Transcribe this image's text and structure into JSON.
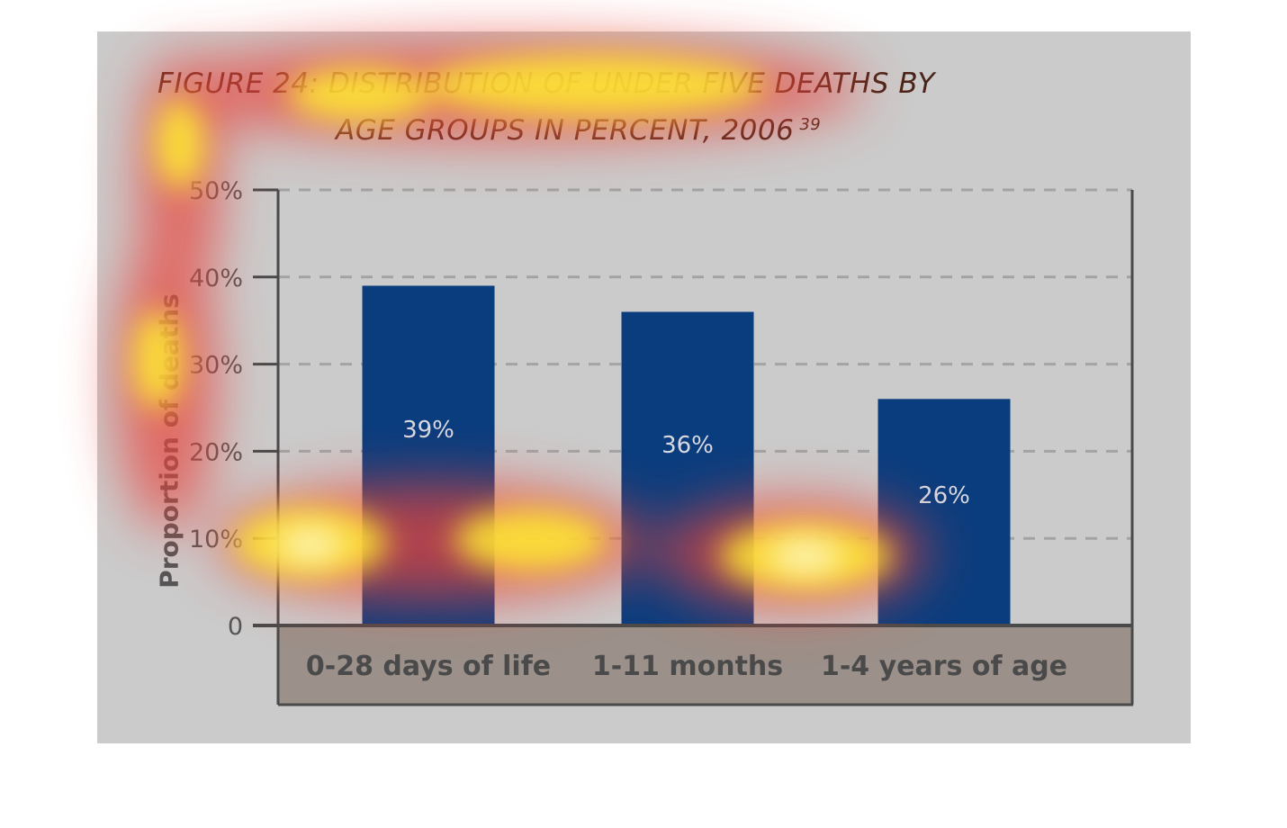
{
  "chart_data": {
    "type": "bar",
    "title_line1": "FIGURE 24: DISTRIBUTION OF UNDER FIVE DEATHS BY",
    "title_line2": "AGE GROUPS IN PERCENT, 2006",
    "title_ref": "39",
    "ylabel": "Proportion of deaths",
    "xlabel": "",
    "categories": [
      "0-28 days of life",
      "1-11 months",
      "1-4 years of age"
    ],
    "values": [
      39,
      36,
      26
    ],
    "data_labels": [
      "39%",
      "36%",
      "26%"
    ],
    "yticks": [
      "0",
      "10%",
      "20%",
      "30%",
      "40%",
      "50%"
    ],
    "ylim": [
      0,
      50
    ],
    "grid": "horizontal dashed",
    "colors": {
      "bar": "#0a3d7e",
      "panel": "#cbcbcb",
      "category_band": "#9b918a",
      "axis": "#4a4a4a",
      "gridline": "#a3a3a3",
      "title": "#4a2418"
    },
    "overlay": "attention heatmap"
  }
}
